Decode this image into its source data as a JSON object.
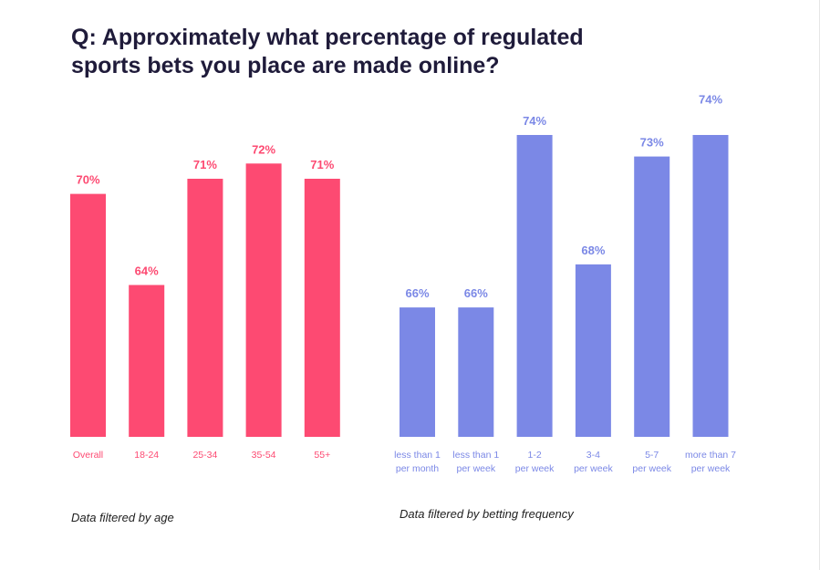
{
  "title": {
    "line1": "Q: Approximately what percentage of regulated",
    "line2": "sports bets you place are made online?"
  },
  "colors": {
    "age": "#fd4a72",
    "frequency": "#7b88e6",
    "title": "#1f1b3a"
  },
  "chart_data": [
    {
      "type": "bar",
      "name": "age",
      "caption": "Data filtered by age",
      "categories": [
        "Overall",
        "18-24",
        "25-34",
        "35-54",
        "55+"
      ],
      "values": [
        70,
        64,
        71,
        72,
        71
      ],
      "value_labels": [
        "70%",
        "64%",
        "71%",
        "72%",
        "71%"
      ],
      "ylim": [
        54,
        74
      ]
    },
    {
      "type": "bar",
      "name": "frequency",
      "caption": "Data filtered by betting frequency",
      "categories": [
        [
          "less than 1",
          "per month"
        ],
        [
          "less than 1",
          "per week"
        ],
        [
          "1-2",
          "per week"
        ],
        [
          "3-4",
          "per week"
        ],
        [
          "5-7",
          "per week"
        ],
        [
          "more than 7",
          "per week"
        ]
      ],
      "values": [
        66,
        66,
        74,
        68,
        73,
        74
      ],
      "value_labels": [
        "66%",
        "66%",
        "74%",
        "68%",
        "73%",
        "74%"
      ],
      "value_label_tops": [
        66,
        66,
        74,
        68,
        73,
        75
      ],
      "ylim": [
        60,
        74
      ]
    }
  ]
}
